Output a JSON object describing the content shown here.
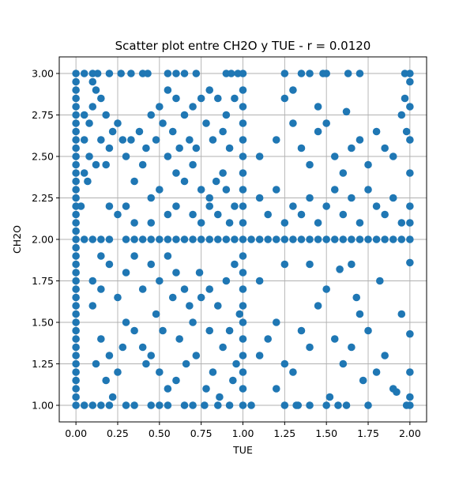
{
  "chart_data": {
    "type": "scatter",
    "title": "Scatter plot entre CH2O y TUE - r = 0.0120",
    "xlabel": "TUE",
    "ylabel": "CH2O",
    "xlim": [
      -0.1,
      2.1
    ],
    "ylim": [
      0.9,
      3.1
    ],
    "xticks": [
      0.0,
      0.25,
      0.5,
      0.75,
      1.0,
      1.25,
      1.5,
      1.75,
      2.0
    ],
    "xtick_labels": [
      "0.00",
      "0.25",
      "0.50",
      "0.75",
      "1.00",
      "1.25",
      "1.50",
      "1.75",
      "2.00"
    ],
    "yticks": [
      1.0,
      1.25,
      1.5,
      1.75,
      2.0,
      2.25,
      2.5,
      2.75,
      3.0
    ],
    "ytick_labels": [
      "1.00",
      "1.25",
      "1.50",
      "1.75",
      "2.00",
      "2.25",
      "2.50",
      "2.75",
      "3.00"
    ],
    "grid": true,
    "marker_color": "#1f77b4",
    "r": 0.012,
    "points": [
      [
        0.0,
        1.0
      ],
      [
        0.0,
        1.05
      ],
      [
        0.0,
        1.1
      ],
      [
        0.0,
        1.15
      ],
      [
        0.0,
        1.2
      ],
      [
        0.0,
        1.25
      ],
      [
        0.0,
        1.3
      ],
      [
        0.0,
        1.35
      ],
      [
        0.0,
        1.4
      ],
      [
        0.0,
        1.45
      ],
      [
        0.0,
        1.5
      ],
      [
        0.0,
        1.55
      ],
      [
        0.0,
        1.6
      ],
      [
        0.0,
        1.65
      ],
      [
        0.0,
        1.7
      ],
      [
        0.0,
        1.75
      ],
      [
        0.0,
        1.8
      ],
      [
        0.0,
        1.85
      ],
      [
        0.0,
        1.9
      ],
      [
        0.0,
        1.95
      ],
      [
        0.0,
        2.0
      ],
      [
        0.0,
        2.05
      ],
      [
        0.0,
        2.1
      ],
      [
        0.0,
        2.15
      ],
      [
        0.0,
        2.2
      ],
      [
        0.0,
        2.25
      ],
      [
        0.0,
        2.3
      ],
      [
        0.0,
        2.35
      ],
      [
        0.0,
        2.4
      ],
      [
        0.0,
        2.45
      ],
      [
        0.0,
        2.5
      ],
      [
        0.0,
        2.55
      ],
      [
        0.0,
        2.6
      ],
      [
        0.0,
        2.65
      ],
      [
        0.0,
        2.7
      ],
      [
        0.0,
        2.75
      ],
      [
        0.0,
        2.8
      ],
      [
        0.0,
        2.85
      ],
      [
        0.0,
        2.9
      ],
      [
        0.0,
        2.95
      ],
      [
        0.0,
        3.0
      ],
      [
        0.05,
        3.0
      ],
      [
        0.1,
        3.0
      ],
      [
        0.13,
        3.0
      ],
      [
        0.2,
        3.0
      ],
      [
        0.27,
        3.0
      ],
      [
        0.33,
        3.0
      ],
      [
        0.4,
        3.0
      ],
      [
        0.43,
        3.0
      ],
      [
        0.55,
        3.0
      ],
      [
        0.6,
        3.0
      ],
      [
        0.65,
        3.0
      ],
      [
        0.72,
        3.0
      ],
      [
        0.9,
        3.0
      ],
      [
        0.93,
        3.0
      ],
      [
        0.97,
        3.0
      ],
      [
        1.0,
        3.0
      ],
      [
        1.25,
        3.0
      ],
      [
        1.35,
        3.0
      ],
      [
        1.4,
        3.0
      ],
      [
        1.48,
        3.0
      ],
      [
        1.5,
        3.0
      ],
      [
        1.63,
        3.0
      ],
      [
        1.7,
        3.0
      ],
      [
        1.97,
        3.0
      ],
      [
        2.0,
        3.0
      ],
      [
        0.05,
        1.0
      ],
      [
        0.1,
        1.0
      ],
      [
        0.15,
        1.0
      ],
      [
        0.2,
        1.0
      ],
      [
        0.3,
        1.0
      ],
      [
        0.35,
        1.0
      ],
      [
        0.45,
        1.0
      ],
      [
        0.5,
        1.0
      ],
      [
        0.55,
        1.0
      ],
      [
        0.65,
        1.0
      ],
      [
        0.7,
        1.0
      ],
      [
        0.77,
        1.0
      ],
      [
        0.85,
        1.0
      ],
      [
        0.92,
        1.0
      ],
      [
        1.0,
        1.0
      ],
      [
        1.05,
        1.0
      ],
      [
        1.25,
        1.0
      ],
      [
        1.33,
        1.0
      ],
      [
        1.4,
        1.0
      ],
      [
        1.5,
        1.0
      ],
      [
        1.57,
        1.0
      ],
      [
        1.62,
        1.0
      ],
      [
        1.75,
        1.0
      ],
      [
        1.98,
        1.0
      ],
      [
        2.0,
        1.0
      ],
      [
        0.05,
        2.0
      ],
      [
        0.1,
        2.0
      ],
      [
        0.15,
        2.0
      ],
      [
        0.2,
        2.0
      ],
      [
        0.3,
        2.0
      ],
      [
        0.35,
        2.0
      ],
      [
        0.4,
        2.0
      ],
      [
        0.45,
        2.0
      ],
      [
        0.5,
        2.0
      ],
      [
        0.55,
        2.0
      ],
      [
        0.6,
        2.0
      ],
      [
        0.65,
        2.0
      ],
      [
        0.7,
        2.0
      ],
      [
        0.75,
        2.0
      ],
      [
        0.8,
        2.0
      ],
      [
        0.85,
        2.0
      ],
      [
        0.9,
        2.0
      ],
      [
        0.95,
        2.0
      ],
      [
        1.0,
        2.0
      ],
      [
        1.05,
        2.0
      ],
      [
        1.1,
        2.0
      ],
      [
        1.15,
        2.0
      ],
      [
        1.2,
        2.0
      ],
      [
        1.25,
        2.0
      ],
      [
        1.3,
        2.0
      ],
      [
        1.35,
        2.0
      ],
      [
        1.4,
        2.0
      ],
      [
        1.45,
        2.0
      ],
      [
        1.5,
        2.0
      ],
      [
        1.55,
        2.0
      ],
      [
        1.6,
        2.0
      ],
      [
        1.65,
        2.0
      ],
      [
        1.7,
        2.0
      ],
      [
        1.75,
        2.0
      ],
      [
        1.8,
        2.0
      ],
      [
        1.85,
        2.0
      ],
      [
        1.9,
        2.0
      ],
      [
        1.95,
        2.0
      ],
      [
        2.0,
        2.0
      ],
      [
        1.0,
        1.1
      ],
      [
        1.0,
        1.2
      ],
      [
        1.0,
        1.3
      ],
      [
        1.0,
        1.4
      ],
      [
        1.0,
        1.5
      ],
      [
        1.0,
        1.6
      ],
      [
        1.0,
        1.7
      ],
      [
        1.0,
        1.8
      ],
      [
        1.0,
        1.9
      ],
      [
        1.0,
        2.1
      ],
      [
        1.0,
        2.2
      ],
      [
        1.0,
        2.3
      ],
      [
        1.0,
        2.4
      ],
      [
        1.0,
        2.5
      ],
      [
        1.0,
        2.6
      ],
      [
        1.0,
        2.7
      ],
      [
        1.0,
        2.8
      ],
      [
        1.0,
        2.9
      ],
      [
        2.0,
        1.05
      ],
      [
        2.0,
        1.2
      ],
      [
        2.0,
        1.43
      ],
      [
        2.0,
        1.86
      ],
      [
        2.0,
        2.1
      ],
      [
        2.0,
        2.2
      ],
      [
        2.0,
        2.4
      ],
      [
        2.0,
        2.6
      ],
      [
        2.0,
        2.8
      ],
      [
        2.0,
        2.95
      ],
      [
        1.98,
        2.65
      ],
      [
        1.97,
        2.85
      ],
      [
        0.05,
        2.75
      ],
      [
        0.08,
        2.7
      ],
      [
        0.1,
        2.8
      ],
      [
        0.12,
        2.9
      ],
      [
        0.15,
        2.6
      ],
      [
        0.18,
        2.75
      ],
      [
        0.2,
        2.55
      ],
      [
        0.22,
        2.65
      ],
      [
        0.05,
        2.6
      ],
      [
        0.08,
        2.5
      ],
      [
        0.12,
        2.45
      ],
      [
        0.15,
        2.85
      ],
      [
        0.25,
        2.7
      ],
      [
        0.28,
        2.6
      ],
      [
        0.3,
        2.5
      ],
      [
        0.1,
        2.95
      ],
      [
        0.05,
        2.4
      ],
      [
        0.07,
        2.35
      ],
      [
        0.18,
        2.45
      ],
      [
        0.03,
        2.2
      ],
      [
        0.1,
        1.6
      ],
      [
        0.15,
        1.4
      ],
      [
        0.2,
        1.3
      ],
      [
        0.25,
        1.2
      ],
      [
        0.3,
        1.5
      ],
      [
        0.35,
        1.45
      ],
      [
        0.4,
        1.35
      ],
      [
        0.45,
        1.3
      ],
      [
        0.5,
        1.2
      ],
      [
        0.55,
        1.1
      ],
      [
        0.6,
        1.15
      ],
      [
        0.12,
        1.25
      ],
      [
        0.18,
        1.15
      ],
      [
        0.22,
        1.05
      ],
      [
        0.28,
        1.35
      ],
      [
        0.42,
        1.25
      ],
      [
        0.48,
        1.55
      ],
      [
        0.52,
        1.45
      ],
      [
        0.58,
        1.65
      ],
      [
        0.15,
        1.7
      ],
      [
        0.3,
        2.2
      ],
      [
        0.35,
        2.35
      ],
      [
        0.4,
        2.45
      ],
      [
        0.45,
        2.25
      ],
      [
        0.5,
        2.3
      ],
      [
        0.55,
        2.5
      ],
      [
        0.6,
        2.4
      ],
      [
        0.65,
        2.35
      ],
      [
        0.7,
        2.45
      ],
      [
        0.75,
        2.3
      ],
      [
        0.8,
        2.25
      ],
      [
        0.62,
        2.55
      ],
      [
        0.68,
        2.6
      ],
      [
        0.72,
        2.55
      ],
      [
        0.58,
        2.65
      ],
      [
        0.52,
        2.7
      ],
      [
        0.48,
        2.6
      ],
      [
        0.42,
        2.55
      ],
      [
        0.38,
        2.65
      ],
      [
        0.33,
        2.6
      ],
      [
        0.7,
        2.8
      ],
      [
        0.75,
        2.85
      ],
      [
        0.8,
        2.9
      ],
      [
        0.85,
        2.85
      ],
      [
        0.9,
        2.75
      ],
      [
        0.95,
        2.85
      ],
      [
        0.78,
        2.7
      ],
      [
        0.82,
        2.6
      ],
      [
        0.88,
        2.65
      ],
      [
        0.92,
        2.55
      ],
      [
        0.65,
        2.75
      ],
      [
        0.6,
        2.85
      ],
      [
        0.55,
        2.9
      ],
      [
        0.5,
        2.8
      ],
      [
        0.45,
        2.75
      ],
      [
        0.7,
        1.5
      ],
      [
        0.75,
        1.65
      ],
      [
        0.8,
        1.7
      ],
      [
        0.85,
        1.6
      ],
      [
        0.9,
        1.75
      ],
      [
        0.95,
        1.85
      ],
      [
        0.92,
        1.45
      ],
      [
        0.88,
        1.35
      ],
      [
        0.82,
        1.2
      ],
      [
        0.78,
        1.1
      ],
      [
        0.72,
        1.3
      ],
      [
        0.66,
        1.25
      ],
      [
        0.62,
        1.4
      ],
      [
        0.68,
        1.6
      ],
      [
        0.74,
        1.8
      ],
      [
        0.98,
        1.55
      ],
      [
        0.96,
        1.25
      ],
      [
        0.94,
        1.15
      ],
      [
        0.86,
        1.05
      ],
      [
        0.8,
        1.45
      ],
      [
        0.7,
        2.15
      ],
      [
        0.75,
        2.1
      ],
      [
        0.8,
        2.2
      ],
      [
        0.85,
        2.15
      ],
      [
        0.9,
        2.3
      ],
      [
        0.95,
        2.2
      ],
      [
        0.88,
        2.4
      ],
      [
        0.84,
        2.35
      ],
      [
        0.92,
        2.1
      ],
      [
        0.6,
        2.2
      ],
      [
        0.55,
        2.15
      ],
      [
        0.45,
        2.1
      ],
      [
        0.35,
        2.1
      ],
      [
        0.25,
        2.15
      ],
      [
        0.2,
        2.2
      ],
      [
        1.1,
        2.25
      ],
      [
        1.15,
        2.15
      ],
      [
        1.2,
        2.3
      ],
      [
        1.25,
        2.1
      ],
      [
        1.3,
        2.2
      ],
      [
        1.35,
        2.15
      ],
      [
        1.4,
        2.25
      ],
      [
        1.45,
        2.1
      ],
      [
        1.5,
        2.2
      ],
      [
        1.55,
        2.3
      ],
      [
        1.6,
        2.15
      ],
      [
        1.65,
        2.25
      ],
      [
        1.7,
        2.1
      ],
      [
        1.75,
        2.3
      ],
      [
        1.8,
        2.2
      ],
      [
        1.85,
        2.15
      ],
      [
        1.9,
        2.25
      ],
      [
        1.95,
        2.1
      ],
      [
        1.1,
        2.5
      ],
      [
        1.2,
        2.6
      ],
      [
        1.3,
        2.7
      ],
      [
        1.35,
        2.55
      ],
      [
        1.4,
        2.45
      ],
      [
        1.45,
        2.65
      ],
      [
        1.5,
        2.7
      ],
      [
        1.55,
        2.5
      ],
      [
        1.6,
        2.4
      ],
      [
        1.65,
        2.55
      ],
      [
        1.7,
        2.6
      ],
      [
        1.75,
        2.45
      ],
      [
        1.8,
        2.65
      ],
      [
        1.85,
        2.55
      ],
      [
        1.9,
        2.5
      ],
      [
        1.95,
        2.75
      ],
      [
        1.25,
        2.85
      ],
      [
        1.3,
        2.9
      ],
      [
        1.45,
        2.8
      ],
      [
        1.62,
        2.77
      ],
      [
        1.1,
        1.3
      ],
      [
        1.15,
        1.4
      ],
      [
        1.2,
        1.5
      ],
      [
        1.25,
        1.25
      ],
      [
        1.3,
        1.2
      ],
      [
        1.35,
        1.45
      ],
      [
        1.4,
        1.35
      ],
      [
        1.45,
        1.6
      ],
      [
        1.5,
        1.7
      ],
      [
        1.55,
        1.4
      ],
      [
        1.6,
        1.25
      ],
      [
        1.65,
        1.35
      ],
      [
        1.7,
        1.55
      ],
      [
        1.75,
        1.45
      ],
      [
        1.8,
        1.2
      ],
      [
        1.85,
        1.3
      ],
      [
        1.9,
        1.1
      ],
      [
        1.95,
        1.55
      ],
      [
        1.25,
        1.85
      ],
      [
        1.65,
        1.85
      ],
      [
        1.1,
        1.75
      ],
      [
        1.2,
        1.1
      ],
      [
        1.32,
        1.0
      ],
      [
        1.52,
        1.05
      ],
      [
        1.72,
        1.15
      ],
      [
        1.82,
        1.75
      ],
      [
        1.92,
        1.08
      ],
      [
        1.58,
        1.82
      ],
      [
        1.68,
        1.65
      ],
      [
        1.4,
        1.85
      ],
      [
        0.3,
        1.8
      ],
      [
        0.35,
        1.9
      ],
      [
        0.4,
        1.7
      ],
      [
        0.45,
        1.85
      ],
      [
        0.5,
        1.75
      ],
      [
        0.55,
        1.9
      ],
      [
        0.6,
        1.8
      ],
      [
        0.65,
        1.7
      ],
      [
        0.25,
        1.65
      ],
      [
        0.2,
        1.85
      ],
      [
        0.15,
        1.9
      ],
      [
        0.1,
        1.75
      ]
    ]
  }
}
